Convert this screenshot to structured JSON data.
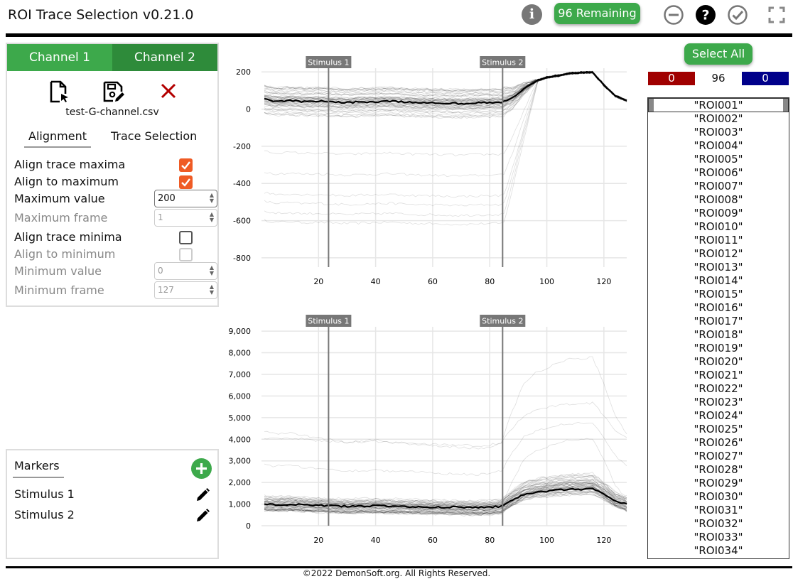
{
  "app": {
    "title": "ROI Trace Selection v0.21.0",
    "remaining": "96 Remaining"
  },
  "header_icons": [
    "info-icon",
    "minus-circle-icon",
    "help-circle-icon",
    "check-circle-icon",
    "fullscreen-icon"
  ],
  "left_panel": {
    "channel_tabs": [
      "Channel 1",
      "Channel 2"
    ],
    "file_icons": [
      "open-file-icon",
      "save-edit-icon",
      "close-x-icon"
    ],
    "filename": "test-G-channel.csv",
    "sub_tabs": [
      "Alignment",
      "Trace Selection"
    ],
    "options": {
      "align_max": "Align trace maxima",
      "align_to_max": "Align to maximum",
      "max_value_label": "Maximum value",
      "max_value": "200",
      "max_frame_label": "Maximum frame",
      "max_frame": "1",
      "align_min": "Align trace minima",
      "align_to_min": "Align to minimum",
      "min_value_label": "Minimum value",
      "min_value": "0",
      "min_frame_label": "Minimum frame",
      "min_frame": "127"
    }
  },
  "markers": {
    "title": "Markers",
    "items": [
      "Stimulus 1",
      "Stimulus 2"
    ]
  },
  "right_panel": {
    "select_all": "Select All",
    "count_red": "0",
    "count_total": "96",
    "count_blue": "0",
    "roi_items": [
      "\"ROI001\"",
      "\"ROI002\"",
      "\"ROI003\"",
      "\"ROI004\"",
      "\"ROI005\"",
      "\"ROI006\"",
      "\"ROI007\"",
      "\"ROI008\"",
      "\"ROI009\"",
      "\"ROI010\"",
      "\"ROI011\"",
      "\"ROI012\"",
      "\"ROI013\"",
      "\"ROI014\"",
      "\"ROI015\"",
      "\"ROI016\"",
      "\"ROI017\"",
      "\"ROI018\"",
      "\"ROI019\"",
      "\"ROI020\"",
      "\"ROI021\"",
      "\"ROI022\"",
      "\"ROI023\"",
      "\"ROI024\"",
      "\"ROI025\"",
      "\"ROI026\"",
      "\"ROI027\"",
      "\"ROI028\"",
      "\"ROI029\"",
      "\"ROI030\"",
      "\"ROI031\"",
      "\"ROI032\"",
      "\"ROI033\"",
      "\"ROI034\""
    ]
  },
  "footer": "©2022 DemonSoft.org. All Rights Reserved.",
  "chart_data": [
    {
      "type": "line",
      "title": "",
      "xlim": [
        0,
        128
      ],
      "ylim": [
        -850,
        220
      ],
      "x_ticks": [
        20,
        40,
        60,
        80,
        100,
        120
      ],
      "y_ticks": [
        200,
        0,
        -200,
        -400,
        -600,
        -800
      ],
      "y_tick_labels": [
        "200",
        "0",
        "-200",
        "-400",
        "-600",
        "-800"
      ],
      "markers": [
        {
          "label": "Stimulus 1",
          "x": 23.5
        },
        {
          "label": "Stimulus 2",
          "x": 84.5
        }
      ],
      "mean_trace": {
        "x": [
          0,
          5,
          10,
          15,
          20,
          25,
          30,
          35,
          40,
          45,
          50,
          55,
          60,
          65,
          70,
          75,
          80,
          84,
          88,
          92,
          96,
          100,
          104,
          108,
          112,
          116,
          120,
          124,
          128
        ],
        "y": [
          55,
          42,
          45,
          40,
          42,
          38,
          35,
          38,
          40,
          42,
          38,
          35,
          34,
          32,
          30,
          33,
          35,
          35,
          60,
          110,
          150,
          170,
          180,
          192,
          196,
          198,
          130,
          70,
          45
        ]
      }
    },
    {
      "type": "line",
      "title": "",
      "xlim": [
        0,
        128
      ],
      "ylim": [
        0,
        9200
      ],
      "x_ticks": [
        20,
        40,
        60,
        80,
        100,
        120
      ],
      "y_ticks": [
        9000,
        8000,
        7000,
        6000,
        5000,
        4000,
        3000,
        2000,
        1000,
        0
      ],
      "y_tick_labels": [
        "9,000",
        "8,000",
        "7,000",
        "6,000",
        "5,000",
        "4,000",
        "3,000",
        "2,000",
        "1,000",
        "0"
      ],
      "markers": [
        {
          "label": "Stimulus 1",
          "x": 23.5
        },
        {
          "label": "Stimulus 2",
          "x": 84.5
        }
      ],
      "mean_trace": {
        "x": [
          0,
          5,
          10,
          15,
          20,
          25,
          30,
          35,
          40,
          45,
          50,
          55,
          60,
          65,
          70,
          75,
          80,
          84,
          88,
          92,
          96,
          100,
          104,
          108,
          112,
          116,
          120,
          124,
          128
        ],
        "y": [
          1000,
          980,
          990,
          960,
          940,
          920,
          900,
          910,
          920,
          900,
          890,
          880,
          870,
          860,
          850,
          840,
          850,
          900,
          1200,
          1450,
          1550,
          1600,
          1650,
          1680,
          1680,
          1700,
          1450,
          1150,
          980
        ]
      }
    }
  ]
}
